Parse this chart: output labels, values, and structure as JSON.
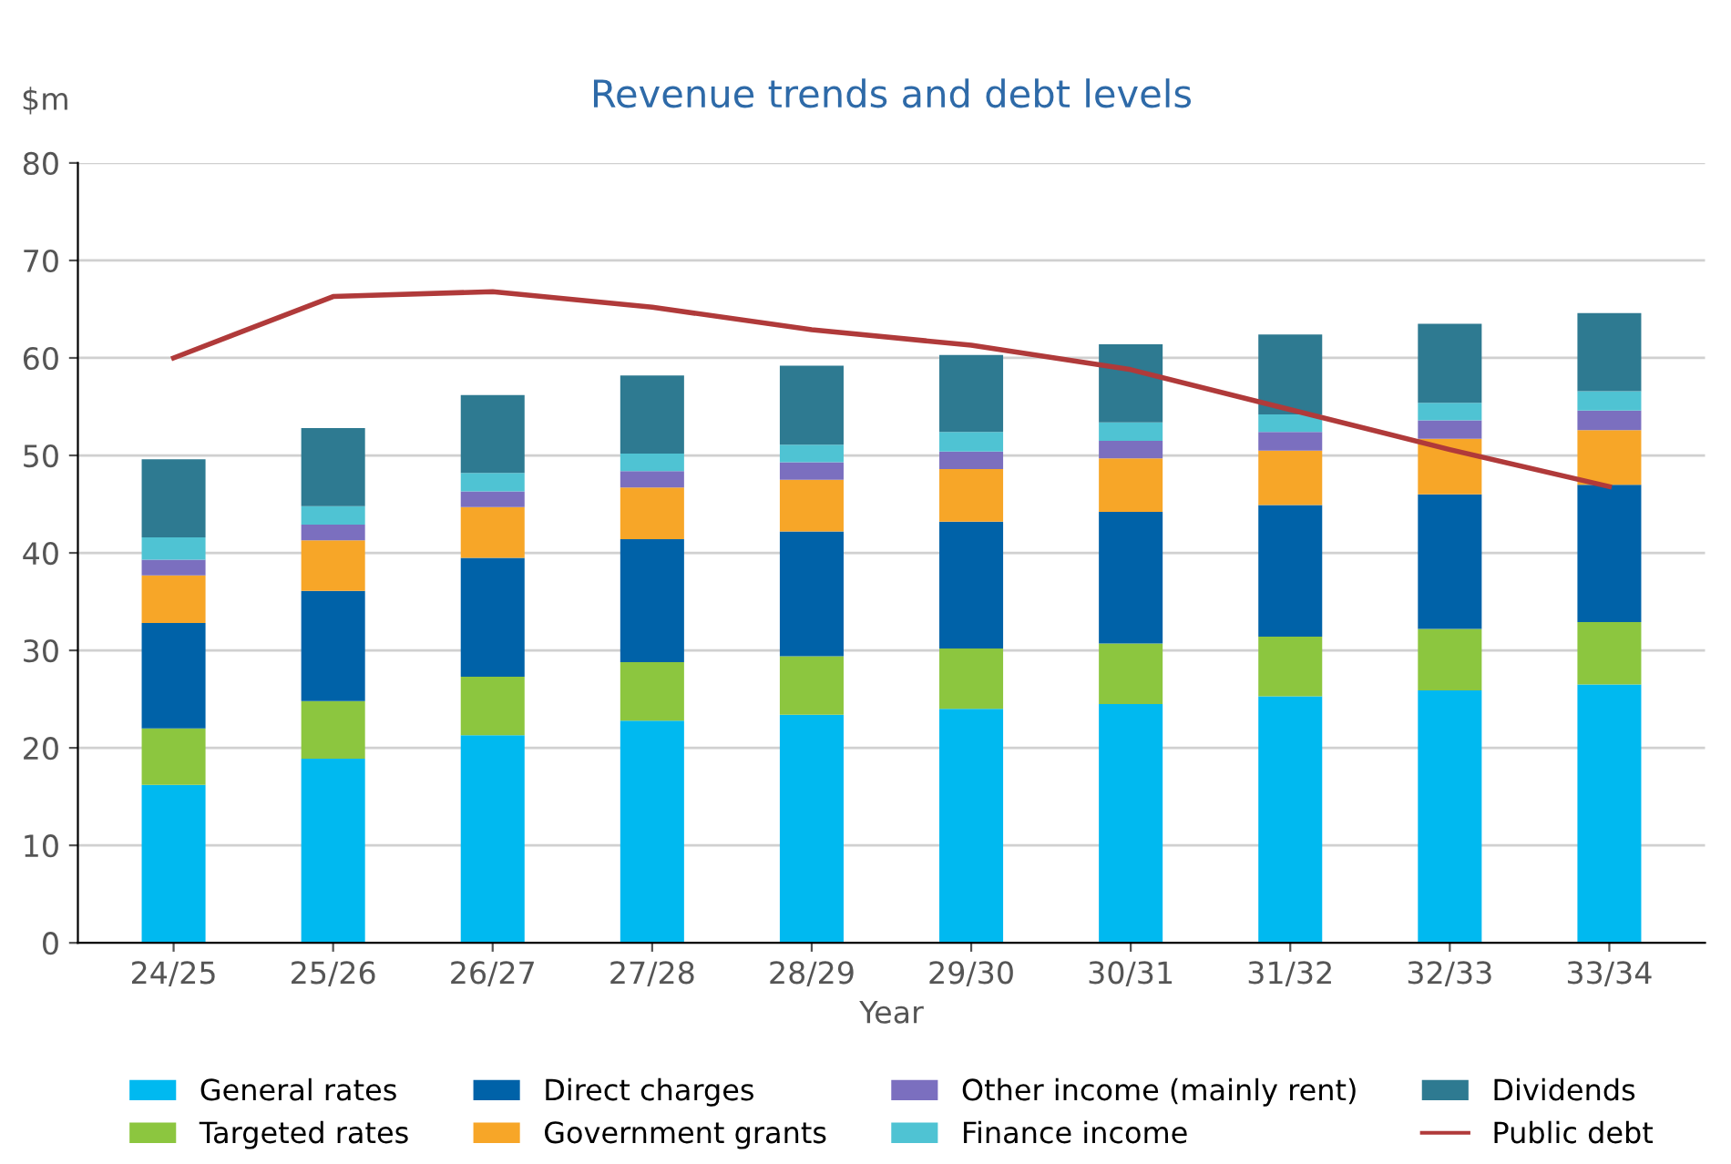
{
  "chart_data": {
    "type": "bar",
    "stacked": true,
    "title": "Revenue trends and debt levels",
    "xlabel": "Year",
    "ylabel": "$m",
    "categories": [
      "24/25",
      "25/26",
      "26/27",
      "27/28",
      "28/29",
      "29/30",
      "30/31",
      "31/32",
      "32/33",
      "33/34"
    ],
    "series": [
      {
        "name": "General rates",
        "color": "#00b9f0",
        "values": [
          16.2,
          18.9,
          21.3,
          22.8,
          23.4,
          24.0,
          24.5,
          25.3,
          25.9,
          26.5
        ]
      },
      {
        "name": "Targeted rates",
        "color": "#8cc63f",
        "values": [
          5.8,
          5.9,
          6.0,
          6.0,
          6.0,
          6.2,
          6.2,
          6.1,
          6.3,
          6.4
        ]
      },
      {
        "name": "Direct charges",
        "color": "#0062a8",
        "values": [
          10.8,
          11.3,
          12.2,
          12.6,
          12.8,
          13.0,
          13.5,
          13.5,
          13.8,
          14.1
        ]
      },
      {
        "name": "Government grants",
        "color": "#f7a628",
        "values": [
          4.9,
          5.2,
          5.2,
          5.3,
          5.3,
          5.4,
          5.5,
          5.6,
          5.7,
          5.6
        ]
      },
      {
        "name": "Other income (mainly rent)",
        "color": "#7b6fbf",
        "values": [
          1.6,
          1.6,
          1.6,
          1.7,
          1.8,
          1.8,
          1.8,
          1.9,
          1.9,
          2.0
        ]
      },
      {
        "name": "Finance income",
        "color": "#4fc3d3",
        "values": [
          2.3,
          1.9,
          1.9,
          1.8,
          1.8,
          2.0,
          1.9,
          1.8,
          1.8,
          2.0
        ]
      },
      {
        "name": "Dividends",
        "color": "#2e7a91",
        "values": [
          8.0,
          8.0,
          8.0,
          8.0,
          8.1,
          7.9,
          8.0,
          8.2,
          8.1,
          8.0
        ]
      },
      {
        "name": "Public debt",
        "type": "line",
        "color": "#b03a3a",
        "marker": "none",
        "line_style": "solid",
        "values": [
          60.0,
          66.3,
          66.8,
          65.2,
          62.9,
          61.3,
          58.8,
          54.7,
          50.6,
          46.8
        ]
      }
    ],
    "ylim": [
      0,
      80
    ],
    "yticks": [
      0,
      10,
      20,
      30,
      40,
      50,
      60,
      70,
      80
    ],
    "grid": "y",
    "legend": "bottom"
  }
}
